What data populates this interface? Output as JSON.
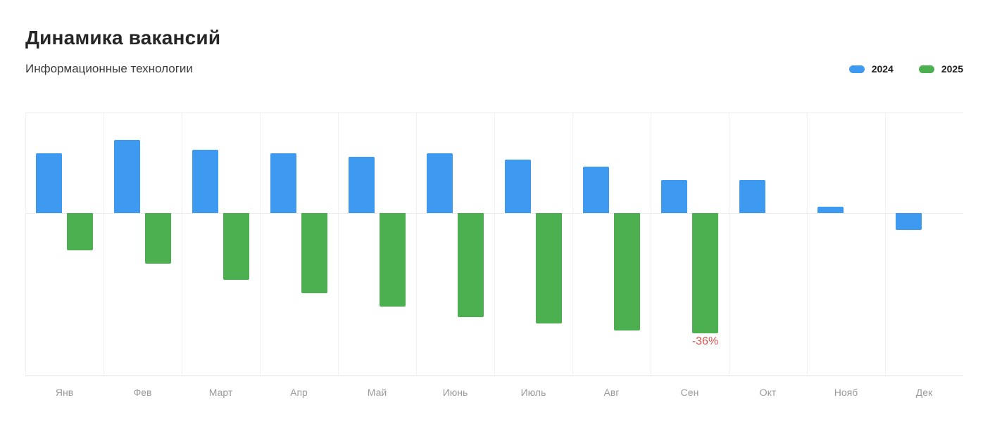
{
  "header": {
    "title": "Динамика вакансий",
    "subtitle": "Информационные технологии"
  },
  "legend": {
    "items": [
      {
        "label": "2024",
        "color": "#3e9af0"
      },
      {
        "label": "2025",
        "color": "#4caf50"
      }
    ]
  },
  "chart_data": {
    "type": "bar",
    "title": "Динамика вакансий",
    "subtitle": "Информационные технологии",
    "unit": "%",
    "categories": [
      "Янв",
      "Фев",
      "Март",
      "Апр",
      "Май",
      "Июнь",
      "Июль",
      "Авг",
      "Сен",
      "Окт",
      "Нояб",
      "Дек"
    ],
    "series": [
      {
        "name": "2024",
        "color": "#3e9af0",
        "values": [
          18,
          22,
          19,
          18,
          17,
          18,
          16,
          14,
          10,
          10,
          2,
          -5
        ]
      },
      {
        "name": "2025",
        "color": "#4caf50",
        "values": [
          -11,
          -15,
          -20,
          -24,
          -28,
          -31,
          -33,
          -35,
          -36,
          null,
          null,
          null
        ]
      }
    ],
    "baseline": 0,
    "ylim": [
      -49,
      30
    ],
    "grid": "vertical-month-boundaries",
    "axis_labels_visible": false,
    "legend_position": "top-right",
    "annotations": [
      {
        "series": "2025",
        "category": "Сен",
        "text": "-36%",
        "color": "#d9534f"
      }
    ]
  }
}
